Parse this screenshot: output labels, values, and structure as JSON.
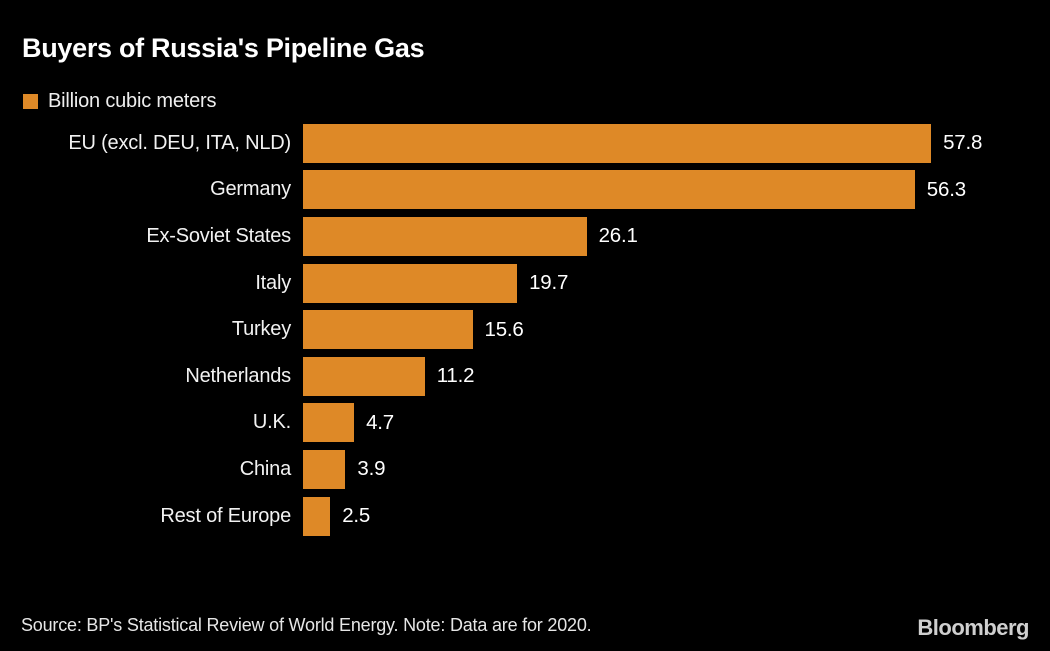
{
  "header": {
    "title": "Buyers of Russia's Pipeline Gas"
  },
  "legend": {
    "label": "Billion cubic meters",
    "swatch_color": "#de8927"
  },
  "chart_data": {
    "type": "bar",
    "orientation": "horizontal",
    "title": "Buyers of Russia's Pipeline Gas",
    "unit": "Billion cubic meters",
    "categories": [
      "EU (excl. DEU, ITA, NLD)",
      "Germany",
      "Ex-Soviet States",
      "Italy",
      "Turkey",
      "Netherlands",
      "U.K.",
      "China",
      "Rest of Europe"
    ],
    "values": [
      57.8,
      56.3,
      26.1,
      19.7,
      15.6,
      11.2,
      4.7,
      3.9,
      2.5
    ],
    "bar_color": "#de8927",
    "text_color": "#ffffff",
    "background_color": "#000000",
    "xlim": [
      0,
      60
    ],
    "grid": false,
    "legend_position": "top-left",
    "value_labels_shown": true
  },
  "footer": {
    "source_note": "Source: BP's Statistical Review of World Energy. Note: Data are for 2020.",
    "brand": "Bloomberg"
  }
}
